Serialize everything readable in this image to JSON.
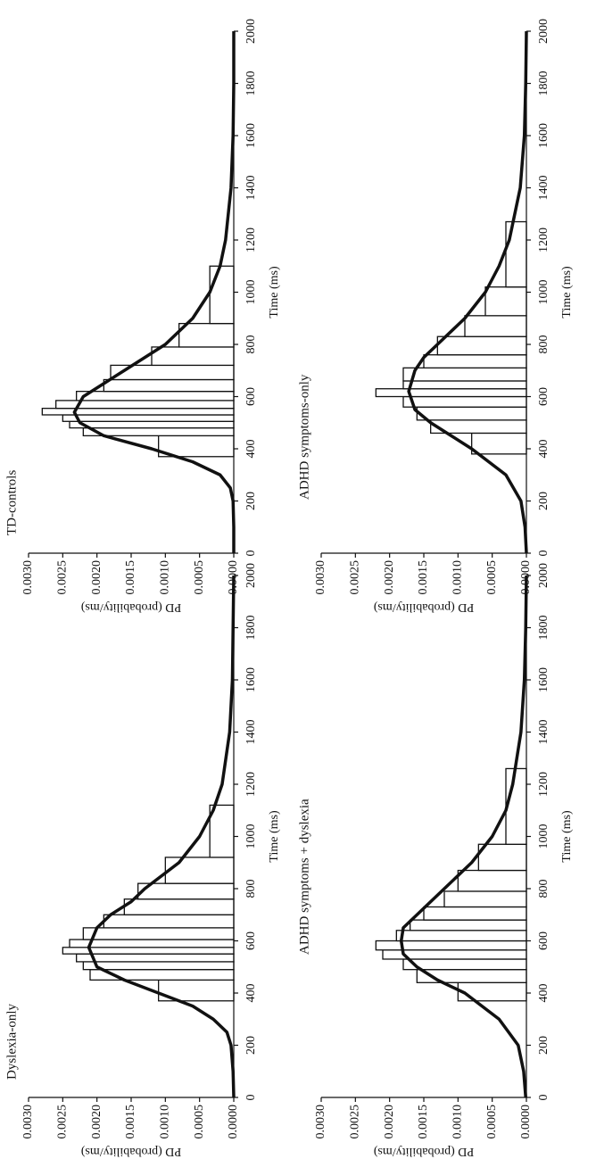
{
  "chart_data": [
    {
      "type": "histogram",
      "title": "TD-controls",
      "x_label": "Time (ms)",
      "y_label": "PD (probability/ms)",
      "bins": [
        370,
        450,
        480,
        505,
        530,
        555,
        585,
        620,
        665,
        720,
        790,
        880,
        1100
      ],
      "values": [
        0.0011,
        0.0022,
        0.0024,
        0.0025,
        0.0028,
        0.0026,
        0.0023,
        0.0019,
        0.0018,
        0.0012,
        0.0008,
        0.00035
      ],
      "curve_x": [
        0,
        100,
        200,
        250,
        300,
        350,
        400,
        450,
        500,
        540,
        600,
        650,
        700,
        750,
        800,
        900,
        1000,
        1100,
        1200,
        1400,
        1600,
        1800,
        2000
      ],
      "curve_values": [
        0,
        0,
        1e-05,
        5e-05,
        0.0002,
        0.0006,
        0.0012,
        0.0019,
        0.00225,
        0.00233,
        0.0022,
        0.0019,
        0.0016,
        0.0013,
        0.001,
        0.0006,
        0.00035,
        0.0002,
        0.00012,
        4e-05,
        1e-05,
        0,
        0
      ],
      "bar_color": "#ffffff",
      "line_color": "#111111",
      "xlim": [
        0,
        2000
      ],
      "xticks": [
        0,
        200,
        400,
        600,
        800,
        1000,
        1200,
        1400,
        1600,
        1800,
        2000
      ],
      "ylim": [
        0,
        0.003
      ],
      "yticks": [
        {
          "value": 0,
          "label": "0.0000"
        },
        {
          "value": 0.0005,
          "label": "0.0005"
        },
        {
          "value": 0.001,
          "label": "0.0010"
        },
        {
          "value": 0.0015,
          "label": "0.0015"
        },
        {
          "value": 0.002,
          "label": "0.0020"
        },
        {
          "value": 0.0025,
          "label": "0.0025"
        },
        {
          "value": 0.003,
          "label": "0.0030"
        }
      ]
    },
    {
      "type": "histogram",
      "title": "ADHD symptoms-only",
      "x_label": "Time (ms)",
      "y_label": "PD (probability/ms)",
      "bins": [
        380,
        460,
        510,
        560,
        600,
        630,
        660,
        710,
        760,
        830,
        910,
        1020,
        1270
      ],
      "values": [
        0.0008,
        0.0014,
        0.0016,
        0.0018,
        0.0022,
        0.0018,
        0.0018,
        0.0015,
        0.0013,
        0.0009,
        0.0006,
        0.0003
      ],
      "curve_x": [
        0,
        100,
        200,
        300,
        400,
        450,
        500,
        550,
        620,
        700,
        750,
        800,
        900,
        1000,
        1100,
        1200,
        1400,
        1600,
        1800,
        2000
      ],
      "curve_values": [
        0,
        2e-05,
        8e-05,
        0.0003,
        0.0008,
        0.0011,
        0.0014,
        0.00163,
        0.00172,
        0.00163,
        0.0015,
        0.0013,
        0.0009,
        0.0006,
        0.0004,
        0.00025,
        9e-05,
        3e-05,
        1e-05,
        0
      ],
      "bar_color": "#ffffff",
      "line_color": "#111111",
      "xlim": [
        0,
        2000
      ],
      "xticks": [
        0,
        200,
        400,
        600,
        800,
        1000,
        1200,
        1400,
        1600,
        1800,
        2000
      ],
      "ylim": [
        0,
        0.003
      ],
      "yticks": [
        {
          "value": 0,
          "label": "0.0000"
        },
        {
          "value": 0.0005,
          "label": "0.0005"
        },
        {
          "value": 0.001,
          "label": "0.0010"
        },
        {
          "value": 0.0015,
          "label": "0.0015"
        },
        {
          "value": 0.002,
          "label": "0.0020"
        },
        {
          "value": 0.0025,
          "label": "0.0025"
        },
        {
          "value": 0.003,
          "label": "0.0030"
        }
      ]
    },
    {
      "type": "histogram",
      "title": "Dyslexia-only",
      "x_label": "Time (ms)",
      "y_label": "PD (probability/ms)",
      "bins": [
        370,
        450,
        490,
        520,
        550,
        575,
        605,
        650,
        700,
        760,
        820,
        920,
        1120
      ],
      "values": [
        0.0011,
        0.0021,
        0.0022,
        0.0023,
        0.0025,
        0.0024,
        0.0022,
        0.0019,
        0.0016,
        0.0014,
        0.001,
        0.00035
      ],
      "curve_x": [
        0,
        100,
        200,
        250,
        300,
        350,
        400,
        450,
        500,
        575,
        650,
        700,
        750,
        800,
        900,
        1000,
        1100,
        1200,
        1400,
        1600,
        2000
      ],
      "curve_values": [
        0,
        1e-05,
        4e-05,
        0.0001,
        0.0003,
        0.0006,
        0.0011,
        0.0016,
        0.002,
        0.00212,
        0.002,
        0.0018,
        0.0015,
        0.0013,
        0.0008,
        0.0005,
        0.0003,
        0.00017,
        6e-05,
        2e-05,
        0
      ],
      "bar_color": "#ffffff",
      "line_color": "#111111",
      "xlim": [
        0,
        2000
      ],
      "xticks": [
        0,
        200,
        400,
        600,
        800,
        1000,
        1200,
        1400,
        1600,
        1800,
        2000
      ],
      "ylim": [
        0,
        0.003
      ],
      "yticks": [
        {
          "value": 0,
          "label": "0.0000"
        },
        {
          "value": 0.0005,
          "label": "0.0005"
        },
        {
          "value": 0.001,
          "label": "0.0010"
        },
        {
          "value": 0.0015,
          "label": "0.0015"
        },
        {
          "value": 0.002,
          "label": "0.0020"
        },
        {
          "value": 0.0025,
          "label": "0.0025"
        },
        {
          "value": 0.003,
          "label": "0.0030"
        }
      ]
    },
    {
      "type": "histogram",
      "title": "ADHD symptoms + dyslexia",
      "x_label": "Time (ms)",
      "y_label": "PD (probability/ms)",
      "bins": [
        370,
        440,
        490,
        530,
        565,
        600,
        640,
        680,
        730,
        790,
        870,
        970,
        1260
      ],
      "values": [
        0.001,
        0.0016,
        0.0018,
        0.0021,
        0.0022,
        0.0019,
        0.0017,
        0.0015,
        0.0012,
        0.001,
        0.0007,
        0.0003
      ],
      "curve_x": [
        0,
        100,
        200,
        300,
        400,
        450,
        500,
        550,
        600,
        650,
        700,
        800,
        900,
        1000,
        1100,
        1200,
        1400,
        1600,
        1800,
        2000
      ],
      "curve_values": [
        1e-05,
        4e-05,
        0.00012,
        0.0004,
        0.0009,
        0.0013,
        0.0016,
        0.0018,
        0.00183,
        0.0018,
        0.0016,
        0.0012,
        0.0008,
        0.0005,
        0.0003,
        0.0002,
        8e-05,
        3e-05,
        1e-05,
        0
      ],
      "bar_color": "#ffffff",
      "line_color": "#111111",
      "xlim": [
        0,
        2000
      ],
      "xticks": [
        0,
        200,
        400,
        600,
        800,
        1000,
        1200,
        1400,
        1600,
        1800,
        2000
      ],
      "ylim": [
        0,
        0.003
      ],
      "yticks": [
        {
          "value": 0,
          "label": "0.0000"
        },
        {
          "value": 0.0005,
          "label": "0.0005"
        },
        {
          "value": 0.001,
          "label": "0.0010"
        },
        {
          "value": 0.0015,
          "label": "0.0015"
        },
        {
          "value": 0.002,
          "label": "0.0020"
        },
        {
          "value": 0.0025,
          "label": "0.0025"
        },
        {
          "value": 0.003,
          "label": "0.0030"
        }
      ]
    }
  ]
}
